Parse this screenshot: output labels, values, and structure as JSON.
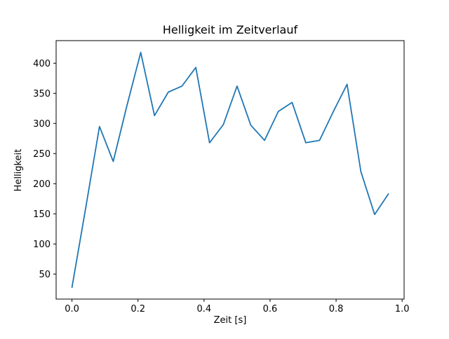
{
  "figure": {
    "background": "#ffffff"
  },
  "chart_data": {
    "type": "line",
    "title": "Helligkeit im Zeitverlauf",
    "xlabel": "Zeit [s]",
    "ylabel": "Helligkeit",
    "line_color": "#1f77b4",
    "grid": false,
    "legend": "none",
    "xlim": [
      -0.048,
      1.006
    ],
    "ylim": [
      8.5,
      437.5
    ],
    "x": [
      0.0,
      0.0417,
      0.0833,
      0.125,
      0.1667,
      0.2083,
      0.25,
      0.2917,
      0.3333,
      0.375,
      0.4167,
      0.4583,
      0.5,
      0.5417,
      0.5833,
      0.625,
      0.6667,
      0.7083,
      0.75,
      0.7917,
      0.8333,
      0.875,
      0.9167,
      0.9583
    ],
    "y": [
      28,
      160,
      295,
      237,
      330,
      418,
      313,
      352,
      362,
      393,
      268,
      298,
      362,
      297,
      272,
      320,
      335,
      268,
      272,
      320,
      365,
      220,
      149,
      183
    ],
    "xticks": [
      {
        "value": 0.0,
        "label": "0.0"
      },
      {
        "value": 0.2,
        "label": "0.2"
      },
      {
        "value": 0.4,
        "label": "0.4"
      },
      {
        "value": 0.6,
        "label": "0.6"
      },
      {
        "value": 0.8,
        "label": "0.8"
      },
      {
        "value": 1.0,
        "label": "1.0"
      }
    ],
    "yticks": [
      {
        "value": 50,
        "label": "50"
      },
      {
        "value": 100,
        "label": "100"
      },
      {
        "value": 150,
        "label": "150"
      },
      {
        "value": 200,
        "label": "200"
      },
      {
        "value": 250,
        "label": "250"
      },
      {
        "value": 300,
        "label": "300"
      },
      {
        "value": 350,
        "label": "350"
      },
      {
        "value": 400,
        "label": "400"
      }
    ]
  }
}
